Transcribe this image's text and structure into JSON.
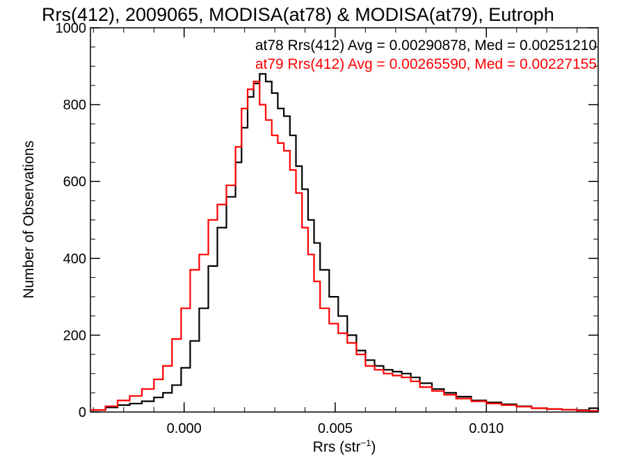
{
  "chart_data": {
    "type": "histogram",
    "title": "Rrs(412), 2009065, MODISA(at78) & MODISA(at79), Eutroph",
    "xlabel": "Rrs (str",
    "xlabel_sup": "−1",
    "xlabel_close": ")",
    "ylabel": "Number of Observations",
    "xlim": [
      -0.0031,
      0.0137
    ],
    "ylim": [
      0,
      1000
    ],
    "x_ticks": [
      0.0,
      0.005,
      0.01
    ],
    "x_tick_labels": [
      "0.000",
      "0.005",
      "0.010"
    ],
    "y_ticks": [
      0,
      200,
      400,
      600,
      800,
      1000
    ],
    "y_tick_labels": [
      "0",
      "200",
      "400",
      "600",
      "800",
      "1000"
    ],
    "legend_position": "top-right",
    "series": [
      {
        "name": "at78 Rrs(412) Avg = 0.00290878, Med = 0.00251210",
        "color": "#000000",
        "points": [
          [
            -0.0031,
            5
          ],
          [
            -0.0026,
            12
          ],
          [
            -0.0022,
            18
          ],
          [
            -0.0018,
            22
          ],
          [
            -0.0014,
            28
          ],
          [
            -0.001,
            38
          ],
          [
            -0.0007,
            50
          ],
          [
            -0.0004,
            70
          ],
          [
            -0.0001,
            115
          ],
          [
            0.0002,
            185
          ],
          [
            0.0005,
            270
          ],
          [
            0.0008,
            380
          ],
          [
            0.0011,
            480
          ],
          [
            0.0014,
            560
          ],
          [
            0.0017,
            650
          ],
          [
            0.0019,
            740
          ],
          [
            0.0021,
            820
          ],
          [
            0.0023,
            855
          ],
          [
            0.0025,
            880
          ],
          [
            0.0027,
            860
          ],
          [
            0.0029,
            830
          ],
          [
            0.0031,
            790
          ],
          [
            0.0033,
            770
          ],
          [
            0.0035,
            720
          ],
          [
            0.0037,
            640
          ],
          [
            0.0039,
            580
          ],
          [
            0.0041,
            500
          ],
          [
            0.0043,
            440
          ],
          [
            0.0045,
            370
          ],
          [
            0.0048,
            300
          ],
          [
            0.0051,
            250
          ],
          [
            0.0054,
            200
          ],
          [
            0.0057,
            160
          ],
          [
            0.006,
            135
          ],
          [
            0.0063,
            120
          ],
          [
            0.0066,
            110
          ],
          [
            0.0069,
            105
          ],
          [
            0.0072,
            100
          ],
          [
            0.0075,
            90
          ],
          [
            0.0078,
            75
          ],
          [
            0.0082,
            60
          ],
          [
            0.0086,
            50
          ],
          [
            0.009,
            40
          ],
          [
            0.0095,
            30
          ],
          [
            0.01,
            25
          ],
          [
            0.0105,
            20
          ],
          [
            0.011,
            15
          ],
          [
            0.0115,
            10
          ],
          [
            0.012,
            8
          ],
          [
            0.0125,
            6
          ],
          [
            0.013,
            5
          ],
          [
            0.0134,
            10
          ],
          [
            0.0137,
            3
          ]
        ]
      },
      {
        "name": "at79 Rrs(412) Avg = 0.00265590, Med = 0.00227155",
        "color": "#ff0000",
        "points": [
          [
            -0.0031,
            5
          ],
          [
            -0.0026,
            15
          ],
          [
            -0.0022,
            30
          ],
          [
            -0.0018,
            42
          ],
          [
            -0.0014,
            60
          ],
          [
            -0.001,
            85
          ],
          [
            -0.0007,
            120
          ],
          [
            -0.0004,
            190
          ],
          [
            -0.0001,
            270
          ],
          [
            0.0002,
            370
          ],
          [
            0.0005,
            410
          ],
          [
            0.0008,
            500
          ],
          [
            0.0011,
            540
          ],
          [
            0.0014,
            590
          ],
          [
            0.0017,
            690
          ],
          [
            0.0019,
            790
          ],
          [
            0.0021,
            840
          ],
          [
            0.0023,
            860
          ],
          [
            0.0025,
            800
          ],
          [
            0.0027,
            760
          ],
          [
            0.0029,
            720
          ],
          [
            0.0031,
            700
          ],
          [
            0.0033,
            680
          ],
          [
            0.0035,
            630
          ],
          [
            0.0037,
            570
          ],
          [
            0.0039,
            480
          ],
          [
            0.0041,
            410
          ],
          [
            0.0043,
            340
          ],
          [
            0.0045,
            270
          ],
          [
            0.0048,
            230
          ],
          [
            0.0051,
            205
          ],
          [
            0.0054,
            180
          ],
          [
            0.0057,
            150
          ],
          [
            0.006,
            120
          ],
          [
            0.0063,
            110
          ],
          [
            0.0066,
            100
          ],
          [
            0.0069,
            95
          ],
          [
            0.0072,
            90
          ],
          [
            0.0075,
            80
          ],
          [
            0.0078,
            65
          ],
          [
            0.0082,
            55
          ],
          [
            0.0086,
            45
          ],
          [
            0.009,
            35
          ],
          [
            0.0095,
            28
          ],
          [
            0.01,
            22
          ],
          [
            0.0105,
            18
          ],
          [
            0.011,
            14
          ],
          [
            0.0115,
            10
          ],
          [
            0.012,
            8
          ],
          [
            0.0125,
            6
          ],
          [
            0.013,
            4
          ],
          [
            0.0134,
            3
          ],
          [
            0.0137,
            2
          ]
        ]
      }
    ]
  }
}
